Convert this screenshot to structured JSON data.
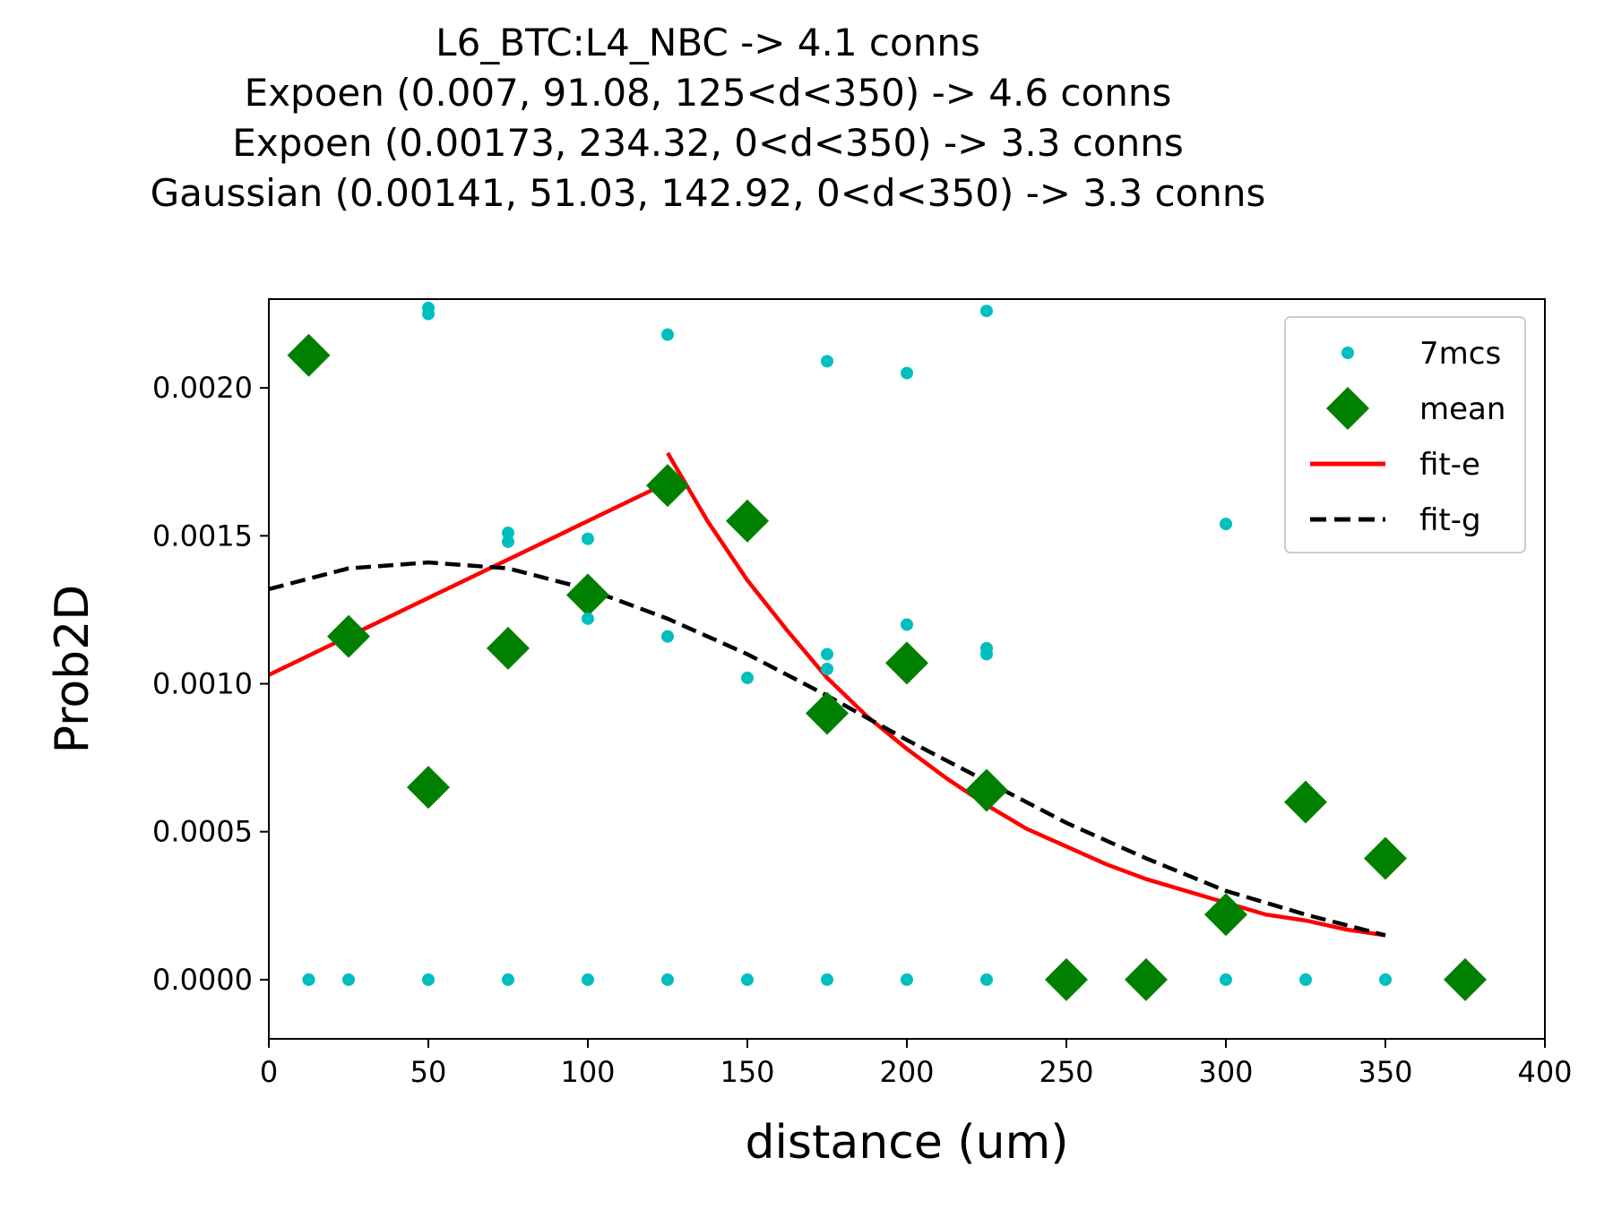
{
  "chart_data": {
    "type": "scatter",
    "title_lines": [
      "L6_BTC:L4_NBC -> 4.1 conns",
      "Expoen (0.007, 91.08, 125<d<350) -> 4.6 conns",
      "Expoen (0.00173, 234.32, 0<d<350) -> 3.3 conns",
      "Gaussian (0.00141, 51.03, 142.92, 0<d<350) -> 3.3 conns"
    ],
    "xlabel": "distance (um)",
    "ylabel": "Prob2D",
    "xlim": [
      0,
      400
    ],
    "ylim": [
      -0.0002,
      0.0023
    ],
    "x_ticks": [
      0,
      50,
      100,
      150,
      200,
      250,
      300,
      350,
      400
    ],
    "x_tick_labels": [
      "0",
      "50",
      "100",
      "150",
      "200",
      "250",
      "300",
      "350",
      "400"
    ],
    "y_ticks": [
      0,
      0.0005,
      0.001,
      0.0015,
      0.002
    ],
    "y_tick_labels": [
      "0.0000",
      "0.0005",
      "0.0010",
      "0.0015",
      "0.0020"
    ],
    "grid": false,
    "legend_position": "top-right",
    "series": [
      {
        "name": "7mcs",
        "kind": "points",
        "color": "#00bfbf",
        "x": [
          12.5,
          12.5,
          25,
          50,
          50,
          50,
          75,
          75,
          75,
          100,
          100,
          100,
          125,
          125,
          125,
          150,
          150,
          175,
          175,
          175,
          175,
          200,
          200,
          200,
          225,
          225,
          225,
          225,
          300,
          300,
          325,
          350
        ],
        "y": [
          0,
          0,
          0,
          0.00227,
          0.00225,
          0,
          0.00151,
          0.00148,
          0,
          0.00149,
          0.00122,
          0,
          0.00218,
          0.00116,
          0,
          0.00102,
          0,
          0.00209,
          0.0011,
          0.00105,
          0,
          0.00205,
          0.0012,
          0,
          0.00226,
          0.00112,
          0.0011,
          0,
          0.00154,
          0,
          0,
          0
        ]
      },
      {
        "name": "mean",
        "kind": "diamonds",
        "color": "#008000",
        "x": [
          12.5,
          25,
          50,
          75,
          100,
          125,
          150,
          175,
          200,
          225,
          250,
          275,
          300,
          325,
          350,
          375
        ],
        "y": [
          0.00211,
          0.00116,
          0.00065,
          0.00112,
          0.0013,
          0.00167,
          0.00155,
          0.0009,
          0.00107,
          0.00064,
          0,
          0,
          0.00022,
          0.0006,
          0.00041,
          0
        ]
      },
      {
        "name": "fit-e",
        "kind": "line",
        "color": "#ff0000",
        "dashed": false,
        "x": [
          0,
          125
        ],
        "y": [
          0.00103,
          0.00168
        ]
      },
      {
        "name": "fit-e-decay",
        "kind": "line",
        "color": "#ff0000",
        "dashed": false,
        "x": [
          125,
          137.5,
          150,
          162.5,
          175,
          187.5,
          200,
          212.5,
          225,
          237.5,
          250,
          262.5,
          275,
          287.5,
          300,
          312.5,
          325,
          337.5,
          350
        ],
        "y": [
          0.00178,
          0.00155,
          0.00135,
          0.00118,
          0.00102,
          0.00089,
          0.00078,
          0.00068,
          0.00059,
          0.00051,
          0.00045,
          0.00039,
          0.00034,
          0.0003,
          0.00026,
          0.00022,
          0.0002,
          0.00017,
          0.00015
        ]
      },
      {
        "name": "fit-g",
        "kind": "line",
        "color": "#000000",
        "dashed": true,
        "x": [
          0,
          25,
          50,
          75,
          100,
          125,
          150,
          175,
          200,
          225,
          250,
          275,
          300,
          325,
          350
        ],
        "y": [
          0.00132,
          0.00139,
          0.00141,
          0.00139,
          0.00132,
          0.00122,
          0.0011,
          0.00096,
          0.00081,
          0.00067,
          0.00053,
          0.00041,
          0.0003,
          0.00022,
          0.00015
        ]
      }
    ],
    "legend": [
      {
        "label": "7mcs",
        "marker": "point",
        "color": "#00bfbf"
      },
      {
        "label": "mean",
        "marker": "diamond",
        "color": "#008000"
      },
      {
        "label": "fit-e",
        "marker": "line",
        "color": "#ff0000"
      },
      {
        "label": "fit-g",
        "marker": "dashed-line",
        "color": "#000000"
      }
    ]
  }
}
